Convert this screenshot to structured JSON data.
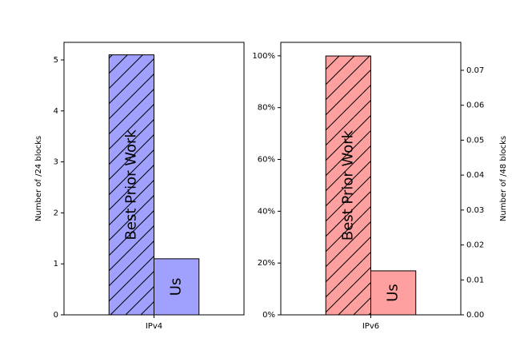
{
  "chart_data": [
    {
      "type": "bar",
      "categories": [
        "IPv4"
      ],
      "series": [
        {
          "name": "Best Prior Work",
          "color": "#a0a0ff",
          "hatch": "/",
          "values": [
            5.1
          ]
        },
        {
          "name": "Us",
          "color": "#a0a0ff",
          "values": [
            1.1
          ]
        }
      ],
      "ylabel": "Number of /24 blocks",
      "ylim": [
        0,
        5.345
      ],
      "yticks": [
        0,
        1,
        2,
        3,
        4,
        5
      ]
    },
    {
      "type": "bar",
      "categories": [
        "IPv6"
      ],
      "series": [
        {
          "name": "Best Prior Work",
          "color": "#ffa0a0",
          "hatch": "/",
          "axis": "y2",
          "values": [
            0.0741
          ]
        },
        {
          "name": "Us",
          "color": "#ffa0a0",
          "axis": "y2",
          "values": [
            0.0126
          ]
        }
      ],
      "ylim": [
        0,
        105.2
      ],
      "yticks": [
        {
          "value": 0,
          "label": "0%"
        },
        {
          "value": 20,
          "label": "20%"
        },
        {
          "value": 40,
          "label": "40%"
        },
        {
          "value": 60,
          "label": "60%"
        },
        {
          "value": 80,
          "label": "80%"
        },
        {
          "value": 100,
          "label": "100%"
        }
      ],
      "y2label": "Number of /48 blocks",
      "y2lim": [
        0,
        0.078
      ],
      "y2ticks": [
        {
          "value": 0,
          "label": "0.00"
        },
        0.01,
        0.02,
        0.03,
        0.04,
        0.05,
        0.06,
        0.07
      ]
    }
  ]
}
